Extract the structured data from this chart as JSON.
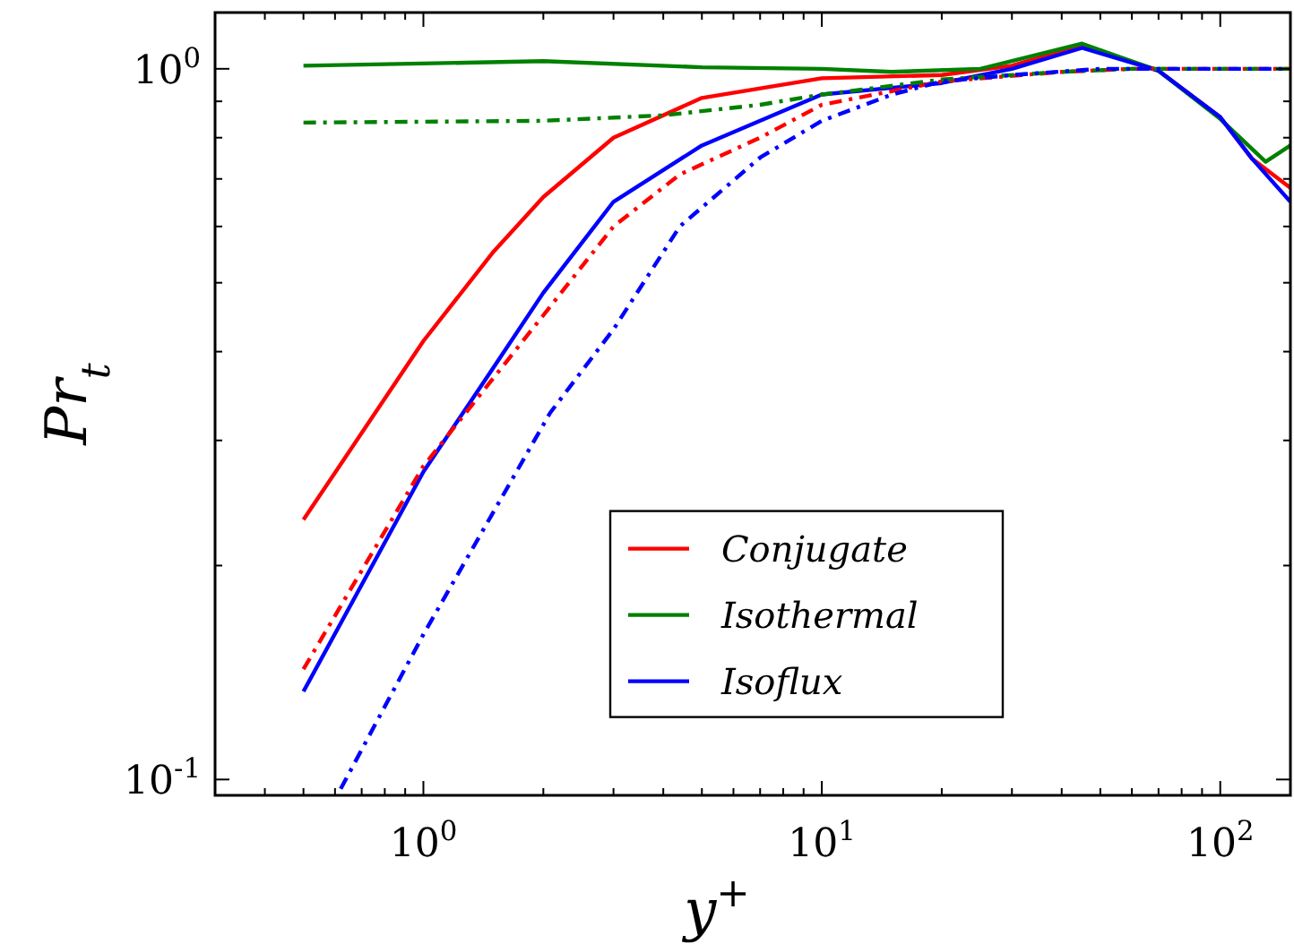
{
  "chart_data": {
    "type": "line",
    "xlabel": "y$^{+}$",
    "ylabel": "Pr$_{t}$",
    "log": "xy",
    "grid": false,
    "legend": "bottom",
    "marker": "none",
    "xlim": [
      0.3,
      150
    ],
    "ylim": [
      0.095,
      1.2
    ],
    "xticks": [
      {
        "value": 0.3,
        "label": null
      },
      {
        "value": 0.4,
        "label": null
      },
      {
        "value": 0.5,
        "label": null
      },
      {
        "value": 0.6,
        "label": null
      },
      {
        "value": 0.7,
        "label": null
      },
      {
        "value": 0.8,
        "label": null
      },
      {
        "value": 0.9,
        "label": null
      },
      {
        "value": 1,
        "label": "10$^{0}$"
      },
      {
        "value": 2,
        "label": null
      },
      {
        "value": 3,
        "label": null
      },
      {
        "value": 4,
        "label": null
      },
      {
        "value": 5,
        "label": null
      },
      {
        "value": 6,
        "label": null
      },
      {
        "value": 7,
        "label": null
      },
      {
        "value": 8,
        "label": null
      },
      {
        "value": 9,
        "label": null
      },
      {
        "value": 10,
        "label": "10$^{1}$"
      },
      {
        "value": 20,
        "label": null
      },
      {
        "value": 30,
        "label": null
      },
      {
        "value": 40,
        "label": null
      },
      {
        "value": 50,
        "label": null
      },
      {
        "value": 60,
        "label": null
      },
      {
        "value": 70,
        "label": null
      },
      {
        "value": 80,
        "label": null
      },
      {
        "value": 90,
        "label": null
      },
      {
        "value": 100,
        "label": "10$^{2}$"
      }
    ],
    "yticks": [
      {
        "value": 0.1,
        "label": "10$^{-1}$"
      },
      {
        "value": 0.2,
        "label": null
      },
      {
        "value": 0.3,
        "label": null
      },
      {
        "value": 0.4,
        "label": null
      },
      {
        "value": 0.5,
        "label": null
      },
      {
        "value": 0.6,
        "label": null
      },
      {
        "value": 0.7,
        "label": null
      },
      {
        "value": 0.8,
        "label": null
      },
      {
        "value": 0.9,
        "label": null
      },
      {
        "value": 1,
        "label": "10$^{0}$"
      }
    ],
    "series": [
      {
        "name": "Conjugate",
        "color": "#ff0000",
        "line_style": "solid",
        "x": [
          0.5,
          1,
          1.5,
          2,
          3,
          5,
          10,
          20,
          30,
          45,
          70,
          100,
          120,
          150
        ],
        "values": [
          0.232,
          0.414,
          0.553,
          0.66,
          0.8,
          0.91,
          0.97,
          0.98,
          1.01,
          1.08,
          0.994,
          0.855,
          0.748,
          0.68
        ]
      },
      {
        "name": "Isothermal",
        "color": "#008000",
        "line_style": "solid",
        "x": [
          0.5,
          2,
          5,
          10,
          15,
          25,
          45,
          70,
          100,
          130,
          150
        ],
        "values": [
          1.01,
          1.025,
          1.005,
          1.0,
          0.99,
          1.0,
          1.085,
          0.994,
          0.85,
          0.74,
          0.78
        ]
      },
      {
        "name": "Isoflux",
        "color": "#0000ff",
        "line_style": "solid",
        "x": [
          0.5,
          1,
          1.5,
          2,
          3,
          5,
          10,
          20,
          30,
          45,
          70,
          100,
          120,
          150
        ],
        "values": [
          0.133,
          0.271,
          0.38,
          0.484,
          0.65,
          0.78,
          0.92,
          0.955,
          1.0,
          1.07,
          0.994,
          0.855,
          0.748,
          0.65
        ]
      },
      {
        "color": "#ff0000",
        "line_style": "dashdot",
        "x": [
          0.5,
          1,
          2,
          3,
          4.4,
          7,
          10,
          20,
          40,
          60,
          150
        ],
        "values": [
          0.143,
          0.276,
          0.45,
          0.6,
          0.71,
          0.8,
          0.89,
          0.96,
          0.99,
          1.0,
          1.0
        ]
      },
      {
        "color": "#008000",
        "line_style": "dashdot",
        "x": [
          0.5,
          2,
          4,
          7,
          10,
          20,
          40,
          60,
          150
        ],
        "values": [
          0.84,
          0.845,
          0.86,
          0.89,
          0.92,
          0.966,
          0.99,
          1.0,
          1.0
        ]
      },
      {
        "color": "#0000ff",
        "line_style": "dashdot",
        "x": [
          0.62,
          1,
          2.08,
          3,
          4.4,
          7,
          10,
          15,
          20,
          30,
          50,
          150
        ],
        "values": [
          0.097,
          0.16,
          0.328,
          0.43,
          0.6,
          0.75,
          0.845,
          0.92,
          0.96,
          0.98,
          1.0,
          1.0
        ]
      }
    ]
  }
}
